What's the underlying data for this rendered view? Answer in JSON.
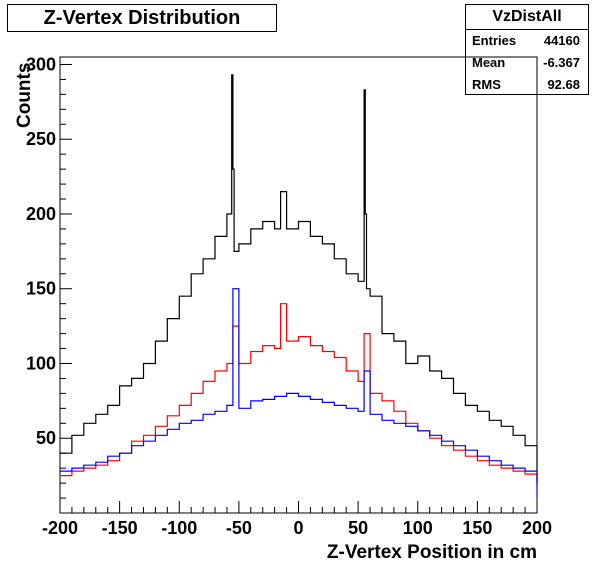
{
  "chart_data": {
    "type": "line",
    "title": "Z-Vertex Distribution",
    "xlabel": "Z-Vertex Position in cm",
    "ylabel": "Counts",
    "xlim": [
      -200,
      200
    ],
    "ylim": [
      0,
      305
    ],
    "xticks": [
      -200,
      -150,
      -100,
      -50,
      0,
      50,
      100,
      150,
      200
    ],
    "yticks": [
      50,
      100,
      150,
      200,
      250,
      300
    ],
    "grid": false,
    "series": [
      {
        "color": "#000000",
        "x": [
          -200,
          -190,
          -180,
          -170,
          -160,
          -150,
          -140,
          -130,
          -120,
          -110,
          -100,
          -90,
          -80,
          -70,
          -60,
          -56,
          -55,
          -54,
          -50,
          -40,
          -30,
          -20,
          -15,
          -10,
          0,
          10,
          20,
          30,
          40,
          50,
          55,
          56,
          57,
          60,
          70,
          80,
          90,
          100,
          110,
          120,
          130,
          140,
          150,
          160,
          170,
          180,
          190,
          200
        ],
        "y": [
          40,
          52,
          60,
          66,
          72,
          85,
          90,
          100,
          115,
          130,
          145,
          160,
          170,
          185,
          200,
          293,
          230,
          175,
          180,
          190,
          195,
          190,
          215,
          190,
          195,
          185,
          180,
          170,
          160,
          155,
          283,
          200,
          150,
          145,
          120,
          115,
          100,
          105,
          95,
          90,
          80,
          72,
          68,
          62,
          58,
          52,
          45,
          20
        ]
      },
      {
        "color": "#ff0000",
        "x": [
          -200,
          -190,
          -180,
          -170,
          -160,
          -150,
          -140,
          -130,
          -120,
          -110,
          -100,
          -90,
          -80,
          -70,
          -60,
          -55,
          -50,
          -40,
          -30,
          -20,
          -15,
          -10,
          0,
          10,
          20,
          30,
          40,
          50,
          55,
          60,
          70,
          80,
          90,
          100,
          110,
          120,
          130,
          140,
          150,
          160,
          170,
          180,
          190,
          200
        ],
        "y": [
          25,
          28,
          30,
          32,
          35,
          40,
          48,
          52,
          58,
          65,
          72,
          80,
          88,
          95,
          100,
          125,
          100,
          108,
          112,
          110,
          140,
          115,
          118,
          112,
          108,
          104,
          95,
          88,
          120,
          80,
          75,
          68,
          60,
          55,
          50,
          45,
          42,
          38,
          35,
          32,
          30,
          28,
          26,
          20
        ]
      },
      {
        "color": "#0000ff",
        "x": [
          -200,
          -190,
          -180,
          -170,
          -160,
          -150,
          -140,
          -130,
          -120,
          -110,
          -100,
          -90,
          -80,
          -70,
          -60,
          -55,
          -50,
          -40,
          -30,
          -20,
          -10,
          0,
          10,
          20,
          30,
          40,
          50,
          55,
          60,
          70,
          80,
          90,
          100,
          110,
          120,
          130,
          140,
          150,
          160,
          170,
          180,
          190,
          200
        ],
        "y": [
          28,
          30,
          32,
          34,
          38,
          40,
          45,
          48,
          52,
          56,
          60,
          62,
          66,
          68,
          72,
          150,
          70,
          75,
          76,
          78,
          80,
          78,
          76,
          74,
          72,
          70,
          68,
          95,
          66,
          62,
          60,
          58,
          55,
          52,
          48,
          45,
          42,
          38,
          35,
          32,
          30,
          28,
          10
        ]
      }
    ],
    "stats": {
      "name": "VzDistAll",
      "rows": [
        {
          "label": "Entries",
          "value": "44160"
        },
        {
          "label": "Mean",
          "value": "-6.367"
        },
        {
          "label": "RMS",
          "value": "92.68"
        }
      ]
    }
  }
}
